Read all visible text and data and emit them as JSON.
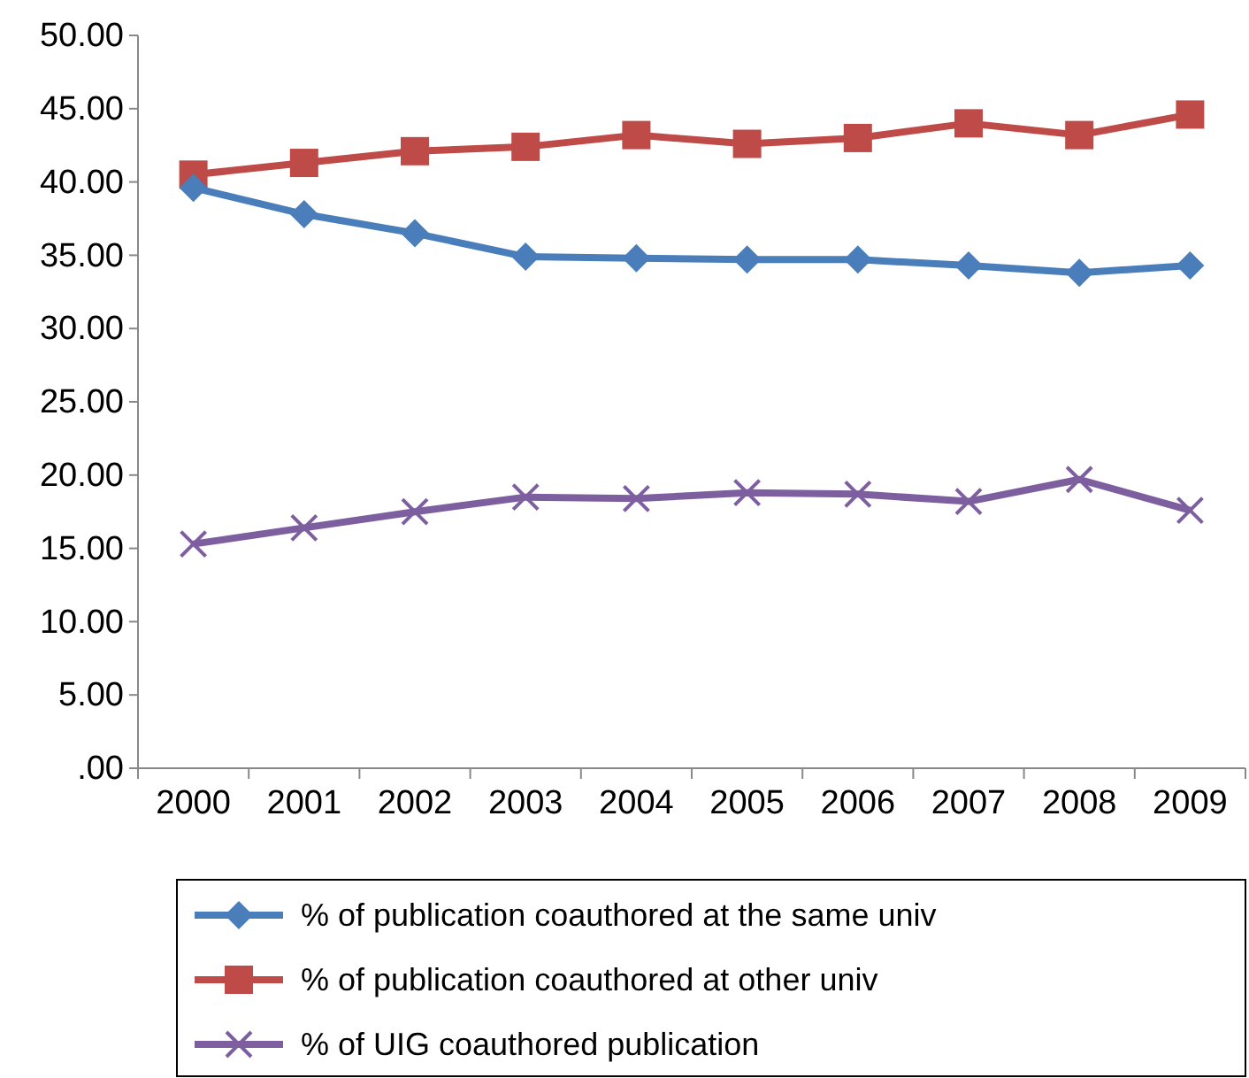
{
  "chart_data": {
    "type": "line",
    "categories": [
      "2000",
      "2001",
      "2002",
      "2003",
      "2004",
      "2005",
      "2006",
      "2007",
      "2008",
      "2009"
    ],
    "ylim": [
      0,
      50
    ],
    "yticks": [
      {
        "value": 0,
        "label": ".00"
      },
      {
        "value": 5,
        "label": "5.00"
      },
      {
        "value": 10,
        "label": "10.00"
      },
      {
        "value": 15,
        "label": "15.00"
      },
      {
        "value": 20,
        "label": "20.00"
      },
      {
        "value": 25,
        "label": "25.00"
      },
      {
        "value": 30,
        "label": "30.00"
      },
      {
        "value": 35,
        "label": "35.00"
      },
      {
        "value": 40,
        "label": "40.00"
      },
      {
        "value": 45,
        "label": "45.00"
      },
      {
        "value": 50,
        "label": "50.00"
      }
    ],
    "grid": false,
    "legend": "bottom",
    "line_style": "solid",
    "series": [
      {
        "name": "% of publication coauthored at the same univ",
        "color": "#4a7ebb",
        "marker": "diamond",
        "values": [
          39.6,
          37.8,
          36.5,
          34.9,
          34.8,
          34.7,
          34.7,
          34.3,
          33.8,
          34.3
        ]
      },
      {
        "name": "% of publication coauthored at other univ",
        "color": "#be4b48",
        "marker": "square",
        "values": [
          40.5,
          41.3,
          42.1,
          42.4,
          43.2,
          42.6,
          43.0,
          44.0,
          43.2,
          44.6
        ]
      },
      {
        "name": "% of UIG coauthored publication",
        "color": "#7d5fa0",
        "marker": "cross",
        "values": [
          15.3,
          16.4,
          17.5,
          18.5,
          18.4,
          18.8,
          18.7,
          18.2,
          19.7,
          17.6
        ]
      }
    ]
  }
}
